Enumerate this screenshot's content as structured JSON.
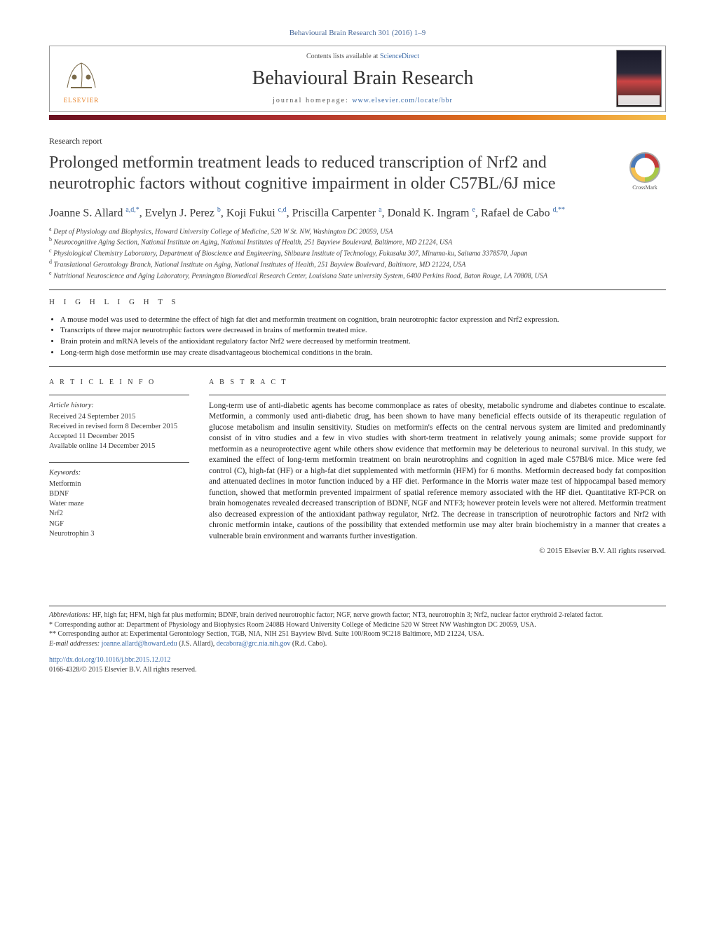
{
  "top_citation": "Behavioural Brain Research 301 (2016) 1–9",
  "header": {
    "contents_prefix": "Contents lists available at ",
    "contents_link": "ScienceDirect",
    "journal": "Behavioural Brain Research",
    "homepage_prefix": "journal homepage: ",
    "homepage_url": "www.elsevier.com/locate/bbr",
    "publisher": "ELSEVIER"
  },
  "article_type": "Research report",
  "title": "Prolonged metformin treatment leads to reduced transcription of Nrf2 and neurotrophic factors without cognitive impairment in older C57BL/6J mice",
  "crossmark_label": "CrossMark",
  "authors_html": "Joanne S. Allard <sup>a,d,*</sup>, Evelyn J. Perez <sup>b</sup>, Koji Fukui <sup>c,d</sup>, Priscilla Carpenter <sup>a</sup>, Donald K. Ingram <sup>e</sup>, Rafael de Cabo <sup>d,**</sup>",
  "affiliations": [
    {
      "tag": "a",
      "text": "Dept of Physiology and Biophysics, Howard University College of Medicine, 520 W St. NW, Washington DC 20059, USA"
    },
    {
      "tag": "b",
      "text": "Neurocognitive Aging Section, National Institute on Aging, National Institutes of Health, 251 Bayview Boulevard, Baltimore, MD 21224, USA"
    },
    {
      "tag": "c",
      "text": "Physiological Chemistry Laboratory, Department of Bioscience and Engineering, Shibaura Institute of Technology, Fukasaku 307, Minuma-ku, Saitama 3378570, Japan"
    },
    {
      "tag": "d",
      "text": "Translational Gerontology Branch, National Institute on Aging, National Institutes of Health, 251 Bayview Boulevard, Baltimore, MD 21224, USA"
    },
    {
      "tag": "e",
      "text": "Nutritional Neuroscience and Aging Laboratory, Pennington Biomedical Research Center, Louisiana State university System, 6400 Perkins Road, Baton Rouge, LA 70808, USA"
    }
  ],
  "highlights_label": "H I G H L I G H T S",
  "highlights": [
    "A mouse model was used to determine the effect of high fat diet and metformin treatment on cognition, brain neurotrophic factor expression and Nrf2 expression.",
    "Transcripts of three major neurotrophic factors were decreased in brains of metformin treated mice.",
    "Brain protein and mRNA levels of the antioxidant regulatory factor Nrf2 were decreased by metformin treatment.",
    "Long-term high dose metformin use may create disadvantageous biochemical conditions in the brain."
  ],
  "article_info_label": "A R T I C L E   I N F O",
  "abstract_label": "A B S T R A C T",
  "history_heading": "Article history:",
  "history": [
    "Received 24 September 2015",
    "Received in revised form 8 December 2015",
    "Accepted 11 December 2015",
    "Available online 14 December 2015"
  ],
  "keywords_heading": "Keywords:",
  "keywords": [
    "Metformin",
    "BDNF",
    "Water maze",
    "Nrf2",
    "NGF",
    "Neurotrophin 3"
  ],
  "abstract": "Long-term use of anti-diabetic agents has become commonplace as rates of obesity, metabolic syndrome and diabetes continue to escalate. Metformin, a commonly used anti-diabetic drug, has been shown to have many beneficial effects outside of its therapeutic regulation of glucose metabolism and insulin sensitivity. Studies on metformin's effects on the central nervous system are limited and predominantly consist of in vitro studies and a few in vivo studies with short-term treatment in relatively young animals; some provide support for metformin as a neuroprotective agent while others show evidence that metformin may be deleterious to neuronal survival. In this study, we examined the effect of long-term metformin treatment on brain neurotrophins and cognition in aged male C57Bl/6 mice. Mice were fed control (C), high-fat (HF) or a high-fat diet supplemented with metformin (HFM) for 6 months. Metformin decreased body fat composition and attenuated declines in motor function induced by a HF diet. Performance in the Morris water maze test of hippocampal based memory function, showed that metformin prevented impairment of spatial reference memory associated with the HF diet. Quantitative RT-PCR on brain homogenates revealed decreased transcription of BDNF, NGF and NTF3; however protein levels were not altered. Metformin treatment also decreased expression of the antioxidant pathway regulator, Nrf2. The decrease in transcription of neurotrophic factors and Nrf2 with chronic metformin intake, cautions of the possibility that extended metformin use may alter brain biochemistry in a manner that creates a vulnerable brain environment and warrants further investigation.",
  "copyright": "© 2015 Elsevier B.V. All rights reserved.",
  "abbreviations_label": "Abbreviations:",
  "abbreviations_text": "HF, high fat; HFM, high fat plus metformin; BDNF, brain derived neurotrophic factor; NGF, nerve growth factor; NT3, neurotrophin 3; Nrf2, nuclear factor erythroid 2-related factor.",
  "corr1_marker": "*",
  "corr1": "Corresponding author at: Department of Physiology and Biophysics Room 2408B Howard University College of Medicine 520 W Street NW Washington DC 20059, USA.",
  "corr2_marker": "**",
  "corr2": "Corresponding author at: Experimental Gerontology Section, TGB, NIA, NIH 251 Bayview Blvd. Suite 100/Room 9C218 Baltimore, MD 21224, USA.",
  "email_label": "E-mail addresses:",
  "email1": "joanne.allard@howard.edu",
  "email1_who": "(J.S. Allard),",
  "email2": "decabora@grc.nia.nih.gov",
  "email2_who": "(R.d. Cabo).",
  "doi_url": "http://dx.doi.org/10.1016/j.bbr.2015.12.012",
  "issn_line": "0166-4328/© 2015 Elsevier B.V. All rights reserved.",
  "colors": {
    "link": "#3a6aa8",
    "elsevier_orange": "#e67a1a",
    "gradient_start": "#6a1020",
    "gradient_end": "#f5c050"
  }
}
